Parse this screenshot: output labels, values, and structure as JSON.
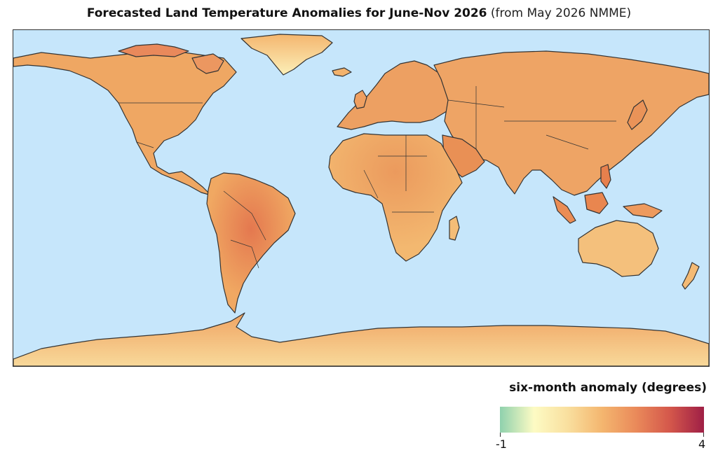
{
  "title": {
    "main": "Forecasted Land Temperature Anomalies for June-Nov 2026",
    "source": "(from May 2026 NMME)"
  },
  "map": {
    "ocean_color": "#c6e6fb",
    "border_color": "#333333",
    "land_base_color": "#f0b46c"
  },
  "legend": {
    "title": "six-month anomaly (degrees)",
    "min_label": "-1",
    "max_label": "4",
    "colors": [
      "#8fd1ad",
      "#fdfbc4",
      "#f9df9e",
      "#f4b66f",
      "#ea8a5a",
      "#d4574b",
      "#9f1f46"
    ]
  }
}
